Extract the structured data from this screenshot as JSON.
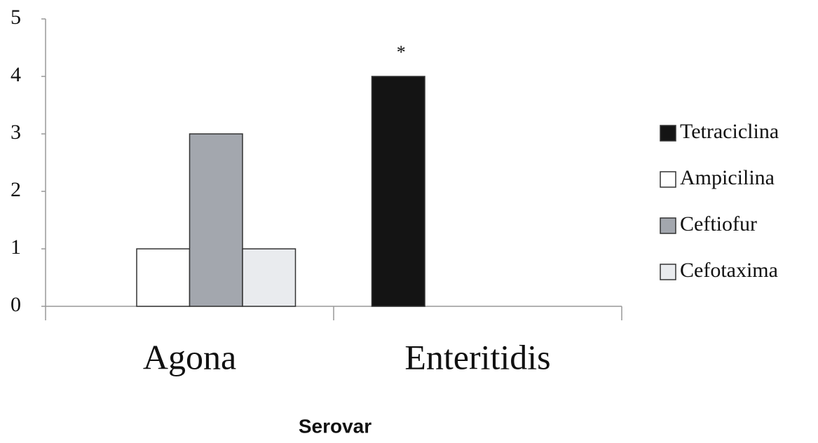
{
  "chart_data": {
    "type": "bar",
    "x_label": "Serovar",
    "annotation": "*",
    "categories": [
      "Agona",
      "Enteritidis"
    ],
    "series": [
      {
        "name": "Tetraciclina",
        "color": "#141414",
        "values": [
          0,
          4
        ]
      },
      {
        "name": "Ampicilina",
        "color": "#ffffff",
        "values": [
          1,
          0
        ]
      },
      {
        "name": "Ceftiofur",
        "color": "#a3a7ae",
        "values": [
          3,
          0
        ]
      },
      {
        "name": "Cefotaxima",
        "color": "#e9ebee",
        "values": [
          1,
          0
        ]
      }
    ],
    "ylim": [
      0,
      5
    ],
    "yticks": [
      0,
      1,
      2,
      3,
      4,
      5
    ],
    "grid": false,
    "legend": "right"
  }
}
